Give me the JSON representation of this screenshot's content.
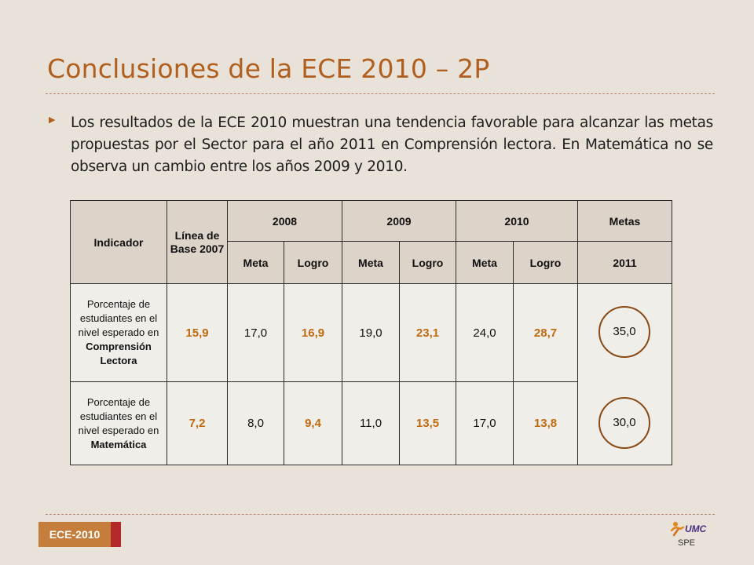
{
  "slide": {
    "title": "Conclusiones de la ECE 2010 – 2P",
    "bullet": "Los resultados de la ECE 2010 muestran una tendencia favorable para alcanzar las metas propuestas por el Sector para el año 2011 en Comprensión lectora. En Matemática no se observa un cambio entre los años 2009 y 2010."
  },
  "table": {
    "headers": {
      "indicador": "Indicador",
      "linea_base": "Línea de Base 2007",
      "year_2008": "2008",
      "year_2009": "2009",
      "year_2010": "2010",
      "metas": "Metas",
      "meta": "Meta",
      "logro": "Logro",
      "year_2011": "2011"
    },
    "rows": [
      {
        "indicator_prefix": "Porcentaje de estudiantes en el nivel esperado en ",
        "indicator_subject": "Comprensión Lectora",
        "base": "15,9",
        "meta_2008": "17,0",
        "logro_2008": "16,9",
        "meta_2009": "19,0",
        "logro_2009": "23,1",
        "meta_2010": "24,0",
        "logro_2010": "28,7",
        "meta_2011": "35,0"
      },
      {
        "indicator_prefix": "Porcentaje de estudiantes en el nivel esperado en ",
        "indicator_subject": "Matemática",
        "base": "7,2",
        "meta_2008": "8,0",
        "logro_2008": "9,4",
        "meta_2009": "11,0",
        "logro_2009": "13,5",
        "meta_2010": "17,0",
        "logro_2010": "13,8",
        "meta_2011": "30,0"
      }
    ]
  },
  "footer": {
    "badge": "ECE-2010",
    "logo_text": "UMC",
    "logo_sub": "SPE"
  },
  "colors": {
    "background": "#e8e2d8",
    "title": "#b05f1f",
    "highlight": "#c06a10",
    "header_fill": "#dcd3c9",
    "badge": "#c57d3c",
    "badge_tip": "#b42a2a",
    "circle": "#8a4a16"
  }
}
